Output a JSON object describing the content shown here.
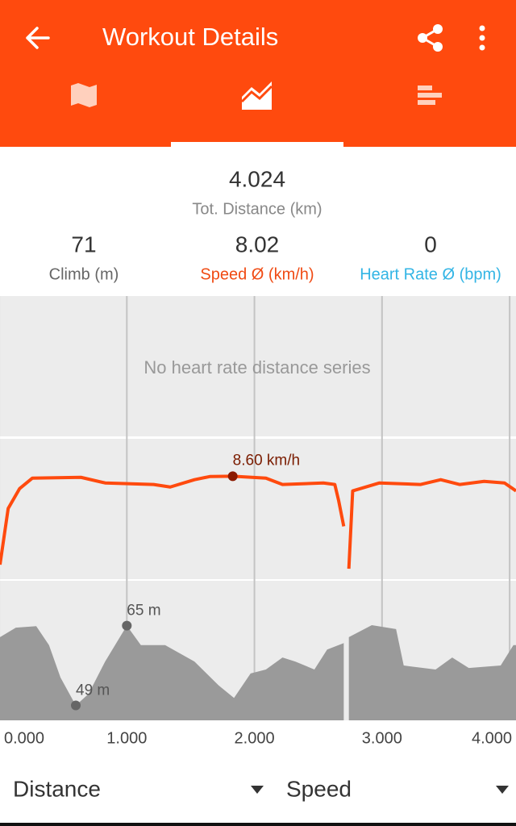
{
  "header": {
    "title": "Workout Details"
  },
  "summary": {
    "distance": {
      "value": 4.024,
      "label": "Tot. Distance (km)"
    },
    "climb": {
      "value": 71,
      "label": "Climb (m)"
    },
    "speed": {
      "value": 8.02,
      "label": "Speed Ø (km/h)"
    },
    "heart_rate": {
      "value": 0,
      "label": "Heart Rate Ø (bpm)"
    }
  },
  "charts": {
    "xlim": [
      0.006,
      4.05
    ],
    "xticks": [
      {
        "value": 0,
        "label": "0.000"
      },
      {
        "value": 1,
        "label": "1.000"
      },
      {
        "value": 2,
        "label": "2.000"
      },
      {
        "value": 3,
        "label": "3.000"
      },
      {
        "value": 4,
        "label": "4.000"
      }
    ],
    "heart_rate": {
      "message": "No heart rate distance series"
    },
    "speed": {
      "type": "line",
      "color": "#ff4a0e",
      "ylim": [
        2,
        11
      ],
      "x": [
        0.006,
        0.07,
        0.16,
        0.26,
        0.64,
        0.83,
        1.21,
        1.34,
        1.53,
        1.65,
        1.83,
        2.09,
        2.22,
        2.54,
        2.63,
        2.66,
        2.7,
        2.72,
        2.74,
        2.77,
        2.98,
        3.3,
        3.46,
        3.61,
        3.8,
        3.96,
        4.05
      ],
      "values": [
        2.93,
        6.53,
        7.81,
        8.48,
        8.53,
        8.17,
        8.07,
        7.91,
        8.38,
        8.58,
        8.6,
        8.48,
        8.07,
        8.17,
        8.07,
        7.04,
        5.39,
        null,
        2.67,
        7.66,
        8.17,
        8.07,
        8.38,
        8.07,
        8.27,
        8.17,
        7.66
      ],
      "highlight": {
        "x": 1.83,
        "value": 8.6,
        "value_label": "8.60 km/h"
      }
    },
    "elevation": {
      "type": "area",
      "color": "#9a9a9a",
      "ylim": [
        46,
        74
      ],
      "x": [
        0.006,
        0.13,
        0.29,
        0.39,
        0.48,
        0.6,
        0.7,
        0.83,
        1.0,
        1.11,
        1.3,
        1.53,
        1.72,
        1.84,
        1.97,
        2.09,
        2.22,
        2.32,
        2.47,
        2.57,
        2.7,
        2.72,
        2.74,
        2.92,
        3.11,
        3.17,
        3.42,
        3.55,
        3.68,
        3.93,
        4.03,
        4.05
      ],
      "values": [
        62.7,
        64.6,
        64.9,
        61.1,
        54.6,
        49,
        51.3,
        57.8,
        65,
        61.1,
        61.1,
        57.8,
        53.0,
        50.5,
        55.4,
        56.2,
        58.6,
        57.8,
        56.2,
        60.2,
        61.5,
        null,
        62.7,
        65.1,
        64.3,
        57.0,
        56.2,
        58.6,
        56.5,
        57.0,
        61.1,
        61.1
      ],
      "min": {
        "x": 0.6,
        "value": 49,
        "value_label": "49 m"
      },
      "max": {
        "x": 1.0,
        "value": 65,
        "value_label": "65 m"
      }
    }
  },
  "footer": {
    "x_selector": "Distance",
    "y_selector": "Speed"
  }
}
